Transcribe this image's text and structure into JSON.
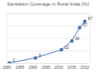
{
  "chart_data": {
    "type": "line",
    "title": "Sanitation Coverage  in Rural India (%)",
    "x": [
      1981,
      1991,
      2001,
      2005,
      2008,
      2010
    ],
    "values": [
      1,
      9,
      22,
      36,
      57,
      67
    ],
    "color": "#4472c4",
    "marker": "circle",
    "data_labels": true,
    "xlim": [
      1980,
      2012
    ],
    "xticks": [
      1980,
      1985,
      1990,
      1995,
      2000,
      2005,
      2010
    ],
    "ylim": [
      0,
      80
    ],
    "yticks": [
      0,
      20,
      40,
      60,
      80
    ],
    "grid": true,
    "tick_labels": "x"
  }
}
